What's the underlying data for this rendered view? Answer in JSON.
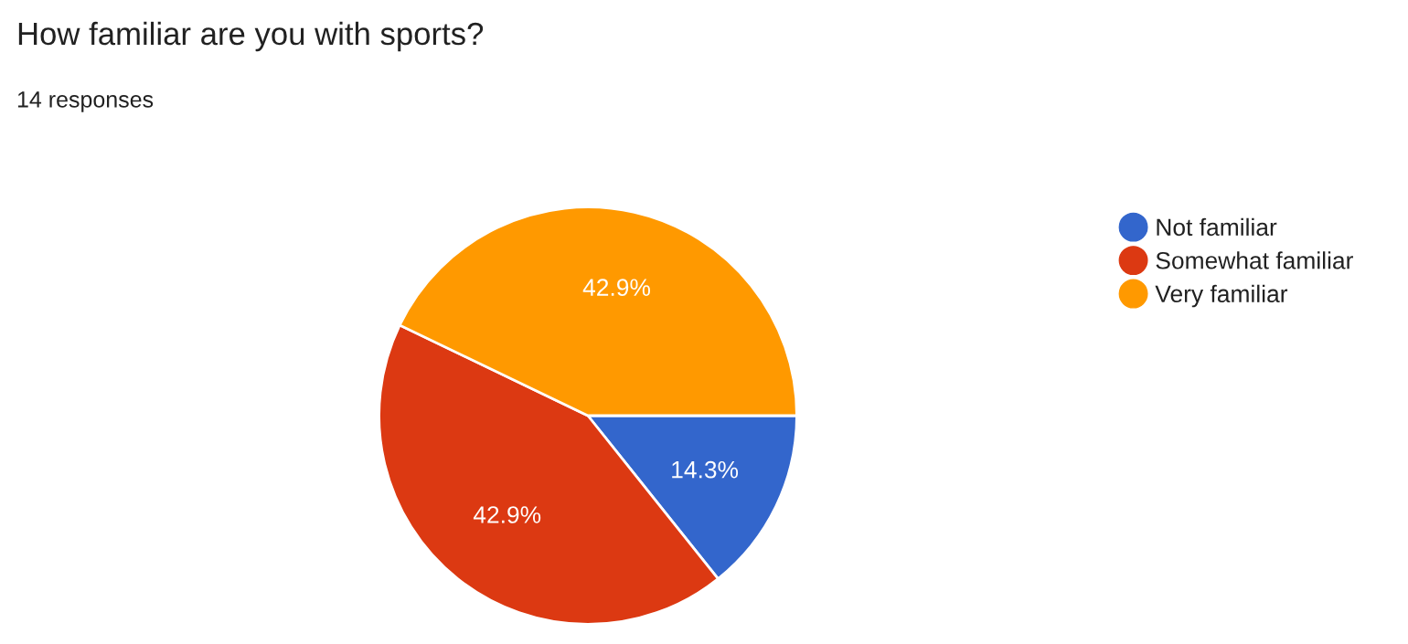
{
  "chart_data": {
    "type": "pie",
    "title": "How familiar are you with sports?",
    "subtitle": "14 responses",
    "categories": [
      "Not familiar",
      "Somewhat familiar",
      "Very familiar"
    ],
    "values": [
      14.3,
      42.9,
      42.9
    ],
    "value_labels": [
      "14.3%",
      "42.9%",
      "42.9%"
    ],
    "colors": [
      "#3366cc",
      "#dc3912",
      "#ff9900"
    ],
    "legend": "right"
  }
}
